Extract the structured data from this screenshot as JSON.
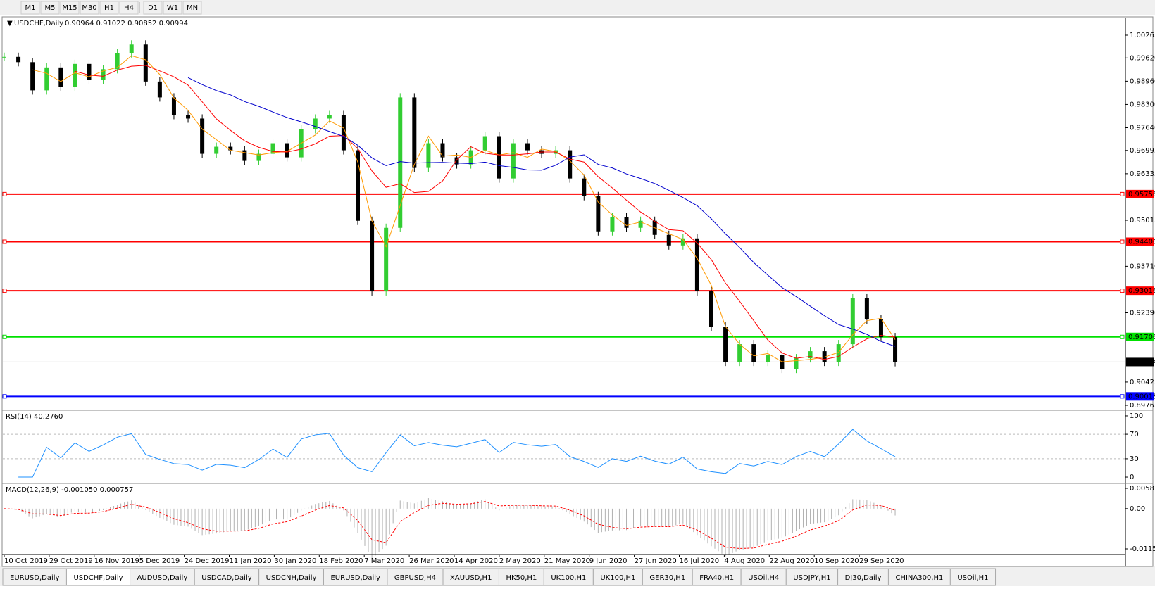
{
  "toolbar": {
    "timeframes": [
      "M1",
      "M5",
      "M15",
      "M30",
      "H1",
      "H4",
      "D1",
      "W1",
      "MN"
    ]
  },
  "chart_data": {
    "type": "candlestick",
    "symbol": "USDCHF,Daily",
    "quote": "0.90964 0.91022 0.90852 0.90994",
    "ylim": [
      0.89665,
      1.00764
    ],
    "yticks": [
      1.00265,
      {
        "value": 0.9962,
        "label": "0.99620"
      },
      {
        "value": 0.9896,
        "label": "0.98960"
      },
      {
        "value": 0.983,
        "label": "0.98300"
      },
      {
        "value": 0.9764,
        "label": "0.97640"
      },
      0.96995,
      0.96335,
      0.95015,
      {
        "value": 0.9371,
        "label": "0.93710"
      },
      {
        "value": 0.9239,
        "label": "0.92390"
      },
      0.90425,
      0.89765
    ],
    "closes": [
      0.9965,
      0.995,
      0.987,
      0.9935,
      0.988,
      0.9945,
      0.99,
      0.993,
      0.9975,
      1.0,
      0.9895,
      0.985,
      0.98,
      0.979,
      0.969,
      0.971,
      0.97,
      0.967,
      0.969,
      0.972,
      0.968,
      0.976,
      0.979,
      0.98,
      0.97,
      0.95,
      0.93,
      0.948,
      0.985,
      0.965,
      0.972,
      0.968,
      0.966,
      0.97,
      0.974,
      0.962,
      0.972,
      0.97,
      0.969,
      0.97,
      0.962,
      0.957,
      0.947,
      0.951,
      0.948,
      0.95,
      0.946,
      0.943,
      0.945,
      0.93,
      0.92,
      0.91,
      0.915,
      0.91,
      0.912,
      0.908,
      0.911,
      0.913,
      0.91,
      0.915,
      0.928,
      0.922,
      0.917,
      0.9099
    ],
    "levels": [
      {
        "value": 0.95756,
        "color": "#ff0000"
      },
      {
        "value": 0.94406,
        "color": "#ff0000"
      },
      {
        "value": 0.93016,
        "color": "#ff0000"
      },
      {
        "value": 0.91706,
        "color": "#00e000"
      },
      {
        "value": 0.90018,
        "color": "#0000ff"
      }
    ],
    "current": 0.90994,
    "dates": [
      "10 Oct 2019",
      "29 Oct 2019",
      "16 Nov 2019",
      "5 Dec 2019",
      "24 Dec 2019",
      "11 Jan 2020",
      "30 Jan 2020",
      "18 Feb 2020",
      "7 Mar 2020",
      "26 Mar 2020",
      "14 Apr 2020",
      "2 May 2020",
      "21 May 2020",
      "9 Jun 2020",
      "27 Jun 2020",
      "16 Jul 2020",
      "4 Aug 2020",
      "22 Aug 2020",
      "10 Sep 2020",
      "29 Sep 2020"
    ],
    "rsi": {
      "label": "RSI(14) 40.2760",
      "ylim": [
        -8,
        108
      ],
      "yticks": [
        100,
        70,
        30,
        0
      ]
    },
    "macd": {
      "label": "MACD(12,26,9) -0.001050 0.000757",
      "ylim": [
        -0.012925,
        0.007027
      ],
      "yticks": [
        0.005818,
        {
          "value": 0,
          "label": "0.00"
        },
        -0.011514
      ]
    }
  },
  "tabs": [
    "EURUSD,Daily",
    "USDCHF,Daily",
    "AUDUSD,Daily",
    "USDCAD,Daily",
    "USDCNH,Daily",
    "EURUSD,Daily",
    "GBPUSD,H4",
    "XAUUSD,H1",
    "HK50,H1",
    "UK100,H1",
    "UK100,H1",
    "GER30,H1",
    "FRA40,H1",
    "USOil,H4",
    "USDJPY,H1",
    "DJ30,Daily",
    "CHINA300,H1",
    "USOil,H1"
  ]
}
